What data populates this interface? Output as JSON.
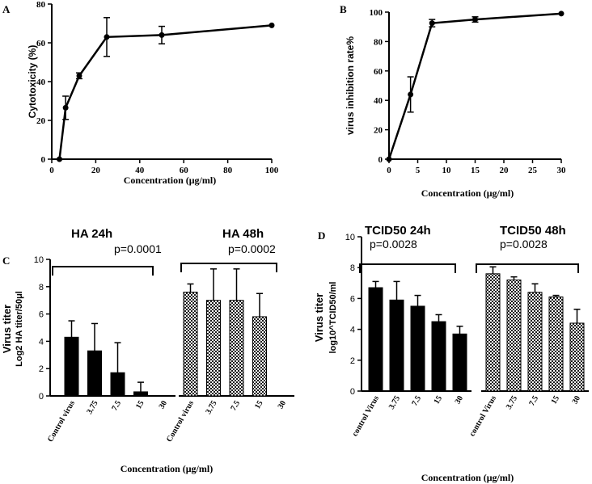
{
  "chart_data": [
    {
      "panel": "A",
      "type": "line",
      "xlabel": "Concentration (μg/ml)",
      "ylabel": "Cytotoxicity (%)",
      "xlim": [
        0,
        100
      ],
      "ylim": [
        0,
        80
      ],
      "xticks": [
        0,
        20,
        40,
        60,
        80,
        100
      ],
      "yticks": [
        0,
        20,
        40,
        60,
        80
      ],
      "points": [
        {
          "x": 3.5,
          "y": 0,
          "err": 0
        },
        {
          "x": 6.3,
          "y": 26.5,
          "err": 6
        },
        {
          "x": 12.5,
          "y": 43,
          "err": 1.5
        },
        {
          "x": 25,
          "y": 63,
          "err": 10
        },
        {
          "x": 50,
          "y": 64,
          "err": 4.5
        },
        {
          "x": 100,
          "y": 69,
          "err": 0
        }
      ]
    },
    {
      "panel": "B",
      "type": "line",
      "xlabel": "Concentration (μg/ml)",
      "ylabel": "virus inhibition rate%",
      "xlim": [
        0,
        30
      ],
      "ylim": [
        0,
        100
      ],
      "xticks": [
        0,
        5,
        10,
        15,
        20,
        25,
        30
      ],
      "yticks": [
        0,
        20,
        40,
        60,
        80,
        100
      ],
      "points": [
        {
          "x": 0,
          "y": 0,
          "err": 0
        },
        {
          "x": 3.75,
          "y": 44,
          "err": 12
        },
        {
          "x": 7.5,
          "y": 92.5,
          "err": 2.5
        },
        {
          "x": 15,
          "y": 95,
          "err": 1.8
        },
        {
          "x": 30,
          "y": 99,
          "err": 0
        }
      ]
    },
    {
      "panel": "C",
      "type": "bar",
      "xlabel": "Concentration (μg/ml)",
      "ylabel": "Virus titer\nLog2 HA titer/50μl",
      "ylim": [
        0,
        10
      ],
      "yticks": [
        0,
        2,
        4,
        6,
        8,
        10
      ],
      "groups": [
        {
          "name": "HA 24h",
          "pvalue": "p=0.0001",
          "pattern": "solid",
          "categories": [
            "Control virus",
            "3.75",
            "7.5",
            "15",
            "30"
          ],
          "values": [
            4.3,
            3.3,
            1.7,
            0.3,
            0
          ],
          "errors": [
            1.2,
            2.0,
            2.2,
            0.7,
            0
          ]
        },
        {
          "name": "HA 48h",
          "pvalue": "p=0.0002",
          "pattern": "checker",
          "categories": [
            "Control virus",
            "3.75",
            "7.5",
            "15",
            "30"
          ],
          "values": [
            7.6,
            7.0,
            7.0,
            5.8,
            0
          ],
          "errors": [
            0.6,
            2.3,
            2.3,
            1.7,
            0
          ]
        }
      ]
    },
    {
      "panel": "D",
      "type": "bar",
      "xlabel": "Concentration (μg/ml)",
      "ylabel": "Virus titer\nlog10^TCID50/ml",
      "ylim": [
        0,
        10
      ],
      "yticks": [
        0,
        2,
        4,
        6,
        8,
        10
      ],
      "groups": [
        {
          "name": "TCID50 24h",
          "pvalue": "p=0.0028",
          "pattern": "solid",
          "categories": [
            "control Virus",
            "3.75",
            "7.5",
            "15",
            "30"
          ],
          "values": [
            6.7,
            5.9,
            5.5,
            4.5,
            3.7
          ],
          "errors": [
            0.4,
            1.2,
            0.7,
            0.45,
            0.5
          ]
        },
        {
          "name": "TCID50 48h",
          "pvalue": "p=0.0028",
          "pattern": "checker",
          "categories": [
            "control Virus",
            "3.75",
            "7.5",
            "15",
            "30"
          ],
          "values": [
            7.6,
            7.2,
            6.4,
            6.1,
            4.4
          ],
          "errors": [
            0.45,
            0.2,
            0.55,
            0.1,
            0.9
          ]
        }
      ]
    }
  ]
}
